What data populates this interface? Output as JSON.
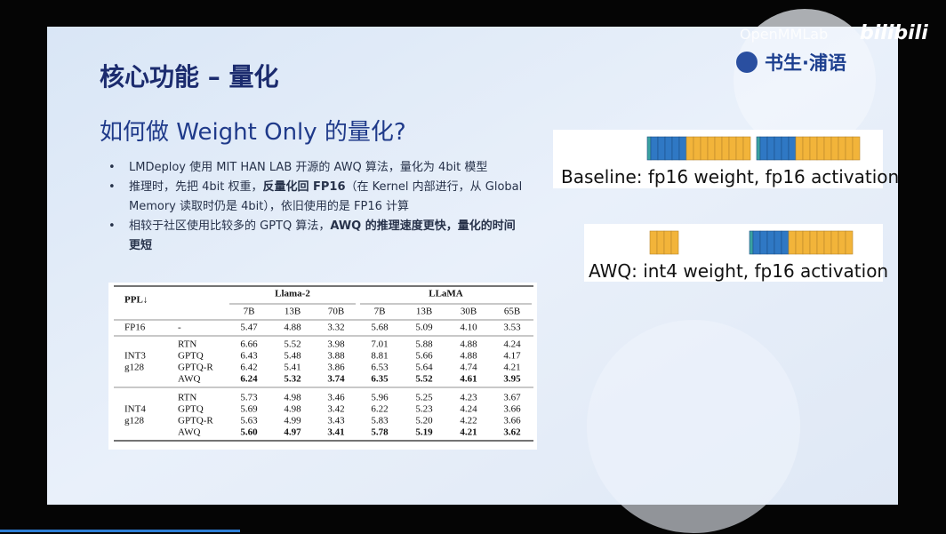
{
  "player": {
    "watermark": "bilibili"
  },
  "slide": {
    "brand": "OpenMMLab",
    "logo": "书生·浦语",
    "title": "核心功能 – 量化",
    "subtitle": "如何做 Weight Only 的量化?",
    "bullets": [
      {
        "segments": [
          {
            "text": "LMDeploy 使用 MIT HAN LAB 开源的 AWQ 算法，量化为 4bit 模型",
            "bold": false
          }
        ]
      },
      {
        "segments": [
          {
            "text": "推理时，先把 4bit 权重，",
            "bold": false
          },
          {
            "text": "反量化回 FP16",
            "bold": true
          },
          {
            "text": "（在 Kernel 内部进行，从 Global Memory 读取时仍是 4bit），依旧使用的是 FP16 计算",
            "bold": false
          }
        ]
      },
      {
        "segments": [
          {
            "text": "相较于社区使用比较多的 GPTQ 算法，",
            "bold": false
          },
          {
            "text": "AWQ 的推理速度更快，量化的时间更短",
            "bold": true
          }
        ]
      }
    ]
  },
  "table": {
    "corner": "PPL↓",
    "groups": [
      {
        "name": "Llama-2",
        "columns": [
          "7B",
          "13B",
          "70B"
        ]
      },
      {
        "name": "LLaMA",
        "columns": [
          "7B",
          "13B",
          "30B",
          "65B"
        ]
      }
    ],
    "baseline": {
      "label": "FP16",
      "method": "-",
      "values": [
        "5.47",
        "4.88",
        "3.32",
        "5.68",
        "5.09",
        "4.10",
        "3.53"
      ]
    },
    "blocks": [
      {
        "label": [
          "INT3",
          "g128"
        ],
        "rows": [
          {
            "method": "RTN",
            "bold": false,
            "values": [
              "6.66",
              "5.52",
              "3.98",
              "7.01",
              "5.88",
              "4.88",
              "4.24"
            ]
          },
          {
            "method": "GPTQ",
            "bold": false,
            "values": [
              "6.43",
              "5.48",
              "3.88",
              "8.81",
              "5.66",
              "4.88",
              "4.17"
            ]
          },
          {
            "method": "GPTQ-R",
            "bold": false,
            "values": [
              "6.42",
              "5.41",
              "3.86",
              "6.53",
              "5.64",
              "4.74",
              "4.21"
            ]
          },
          {
            "method": "AWQ",
            "bold": true,
            "values": [
              "6.24",
              "5.32",
              "3.74",
              "6.35",
              "5.52",
              "4.61",
              "3.95"
            ]
          }
        ]
      },
      {
        "label": [
          "INT4",
          "g128"
        ],
        "rows": [
          {
            "method": "RTN",
            "bold": false,
            "values": [
              "5.73",
              "4.98",
              "3.46",
              "5.96",
              "5.25",
              "4.23",
              "3.67"
            ]
          },
          {
            "method": "GPTQ",
            "bold": false,
            "values": [
              "5.69",
              "4.98",
              "3.42",
              "6.22",
              "5.23",
              "4.24",
              "3.66"
            ]
          },
          {
            "method": "GPTQ-R",
            "bold": false,
            "values": [
              "5.63",
              "4.99",
              "3.43",
              "5.83",
              "5.20",
              "4.22",
              "3.66"
            ]
          },
          {
            "method": "AWQ",
            "bold": true,
            "values": [
              "5.60",
              "4.97",
              "3.41",
              "5.78",
              "5.19",
              "4.21",
              "3.62"
            ]
          }
        ]
      }
    ]
  },
  "diagrams": [
    {
      "label": "Baseline: fp16 weight, fp16 activation"
    },
    {
      "label": "AWQ: int4 weight, fp16 activation"
    }
  ]
}
